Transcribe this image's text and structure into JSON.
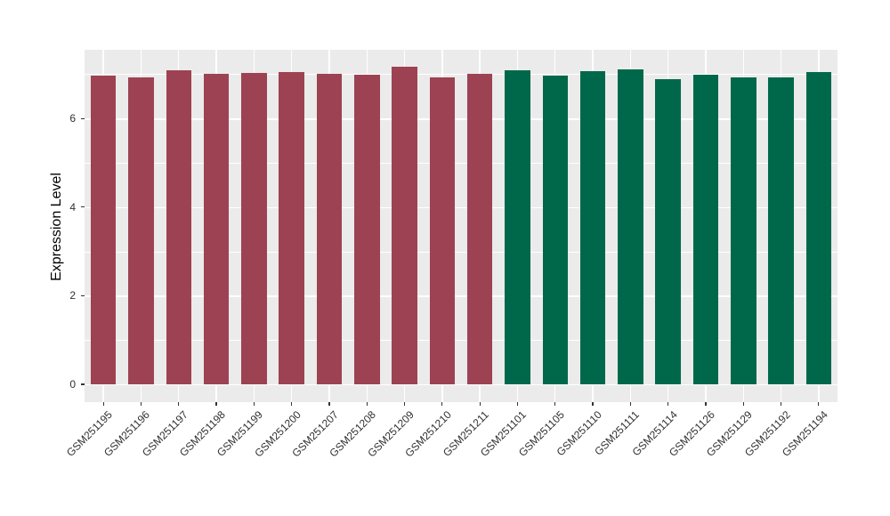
{
  "chart_data": {
    "type": "bar",
    "title": "",
    "xlabel": "",
    "ylabel": "Expression Level",
    "ylim": [
      0,
      7.5
    ],
    "yticks": [
      0,
      2,
      4,
      6
    ],
    "ytick_labels": [
      "0",
      "2",
      "4",
      "6"
    ],
    "yticks_minor": [
      1,
      3,
      5,
      7
    ],
    "grid": "white major+minor horizontal and major vertical gridlines on grey panel",
    "legend": false,
    "bars": [
      {
        "label": "GSM251195",
        "value": 6.96,
        "group": "maroon"
      },
      {
        "label": "GSM251196",
        "value": 6.92,
        "group": "maroon"
      },
      {
        "label": "GSM251197",
        "value": 7.09,
        "group": "maroon"
      },
      {
        "label": "GSM251198",
        "value": 7.0,
        "group": "maroon"
      },
      {
        "label": "GSM251199",
        "value": 7.03,
        "group": "maroon"
      },
      {
        "label": "GSM251200",
        "value": 7.04,
        "group": "maroon"
      },
      {
        "label": "GSM251207",
        "value": 7.01,
        "group": "maroon"
      },
      {
        "label": "GSM251208",
        "value": 6.98,
        "group": "maroon"
      },
      {
        "label": "GSM251209",
        "value": 7.17,
        "group": "maroon"
      },
      {
        "label": "GSM251210",
        "value": 6.93,
        "group": "maroon"
      },
      {
        "label": "GSM251211",
        "value": 7.0,
        "group": "maroon"
      },
      {
        "label": "GSM251101",
        "value": 7.08,
        "group": "green"
      },
      {
        "label": "GSM251105",
        "value": 6.97,
        "group": "green"
      },
      {
        "label": "GSM251110",
        "value": 7.06,
        "group": "green"
      },
      {
        "label": "GSM251111",
        "value": 7.11,
        "group": "green"
      },
      {
        "label": "GSM251114",
        "value": 6.88,
        "group": "green"
      },
      {
        "label": "GSM251126",
        "value": 6.98,
        "group": "green"
      },
      {
        "label": "GSM251129",
        "value": 6.92,
        "group": "green"
      },
      {
        "label": "GSM251192",
        "value": 6.92,
        "group": "green"
      },
      {
        "label": "GSM251194",
        "value": 7.05,
        "group": "green"
      }
    ],
    "group_colors": {
      "maroon": "#9D4252",
      "green": "#00684A"
    },
    "colors": {
      "panel_bg": "#EBEBEB",
      "grid": "#FFFFFF",
      "tick_text": "#303030",
      "axis_title": "#000000",
      "tick_mark": "#333333"
    }
  }
}
